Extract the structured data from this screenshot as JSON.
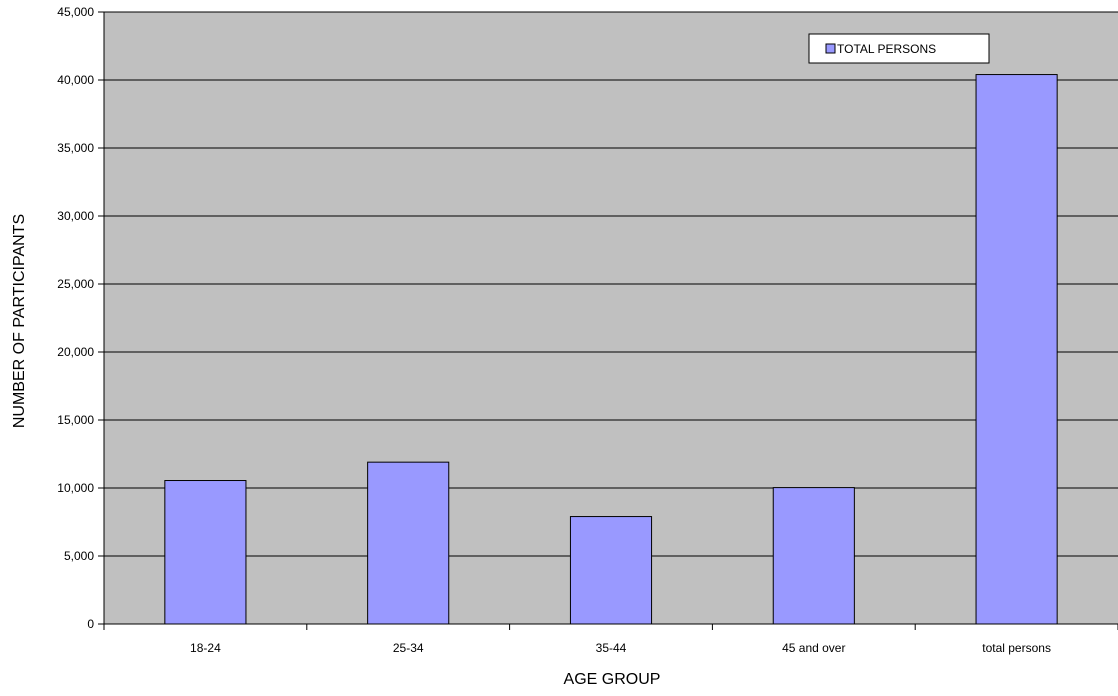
{
  "chart_data": {
    "type": "bar",
    "categories": [
      "18-24",
      "25-34",
      "35-44",
      "45 and over",
      "total persons"
    ],
    "series": [
      {
        "name": "TOTAL PERSONS",
        "values": [
          10550,
          11900,
          7900,
          10030,
          40400
        ]
      }
    ],
    "xlabel": "AGE GROUP",
    "ylabel": "NUMBER OF PARTICIPANTS",
    "ylim": [
      0,
      45000
    ],
    "yticks": [
      0,
      5000,
      10000,
      15000,
      20000,
      25000,
      30000,
      35000,
      40000,
      45000
    ],
    "ytick_labels": [
      "0",
      "5,000",
      "10,000",
      "15,000",
      "20,000",
      "25,000",
      "30,000",
      "35,000",
      "40,000",
      "45,000"
    ],
    "grid": true,
    "legend_position": "top-right",
    "colors": {
      "plot_background": "#c0c0c0",
      "bar_fill": "#9999ff",
      "bar_stroke": "#000000",
      "gridline": "#000000"
    }
  }
}
